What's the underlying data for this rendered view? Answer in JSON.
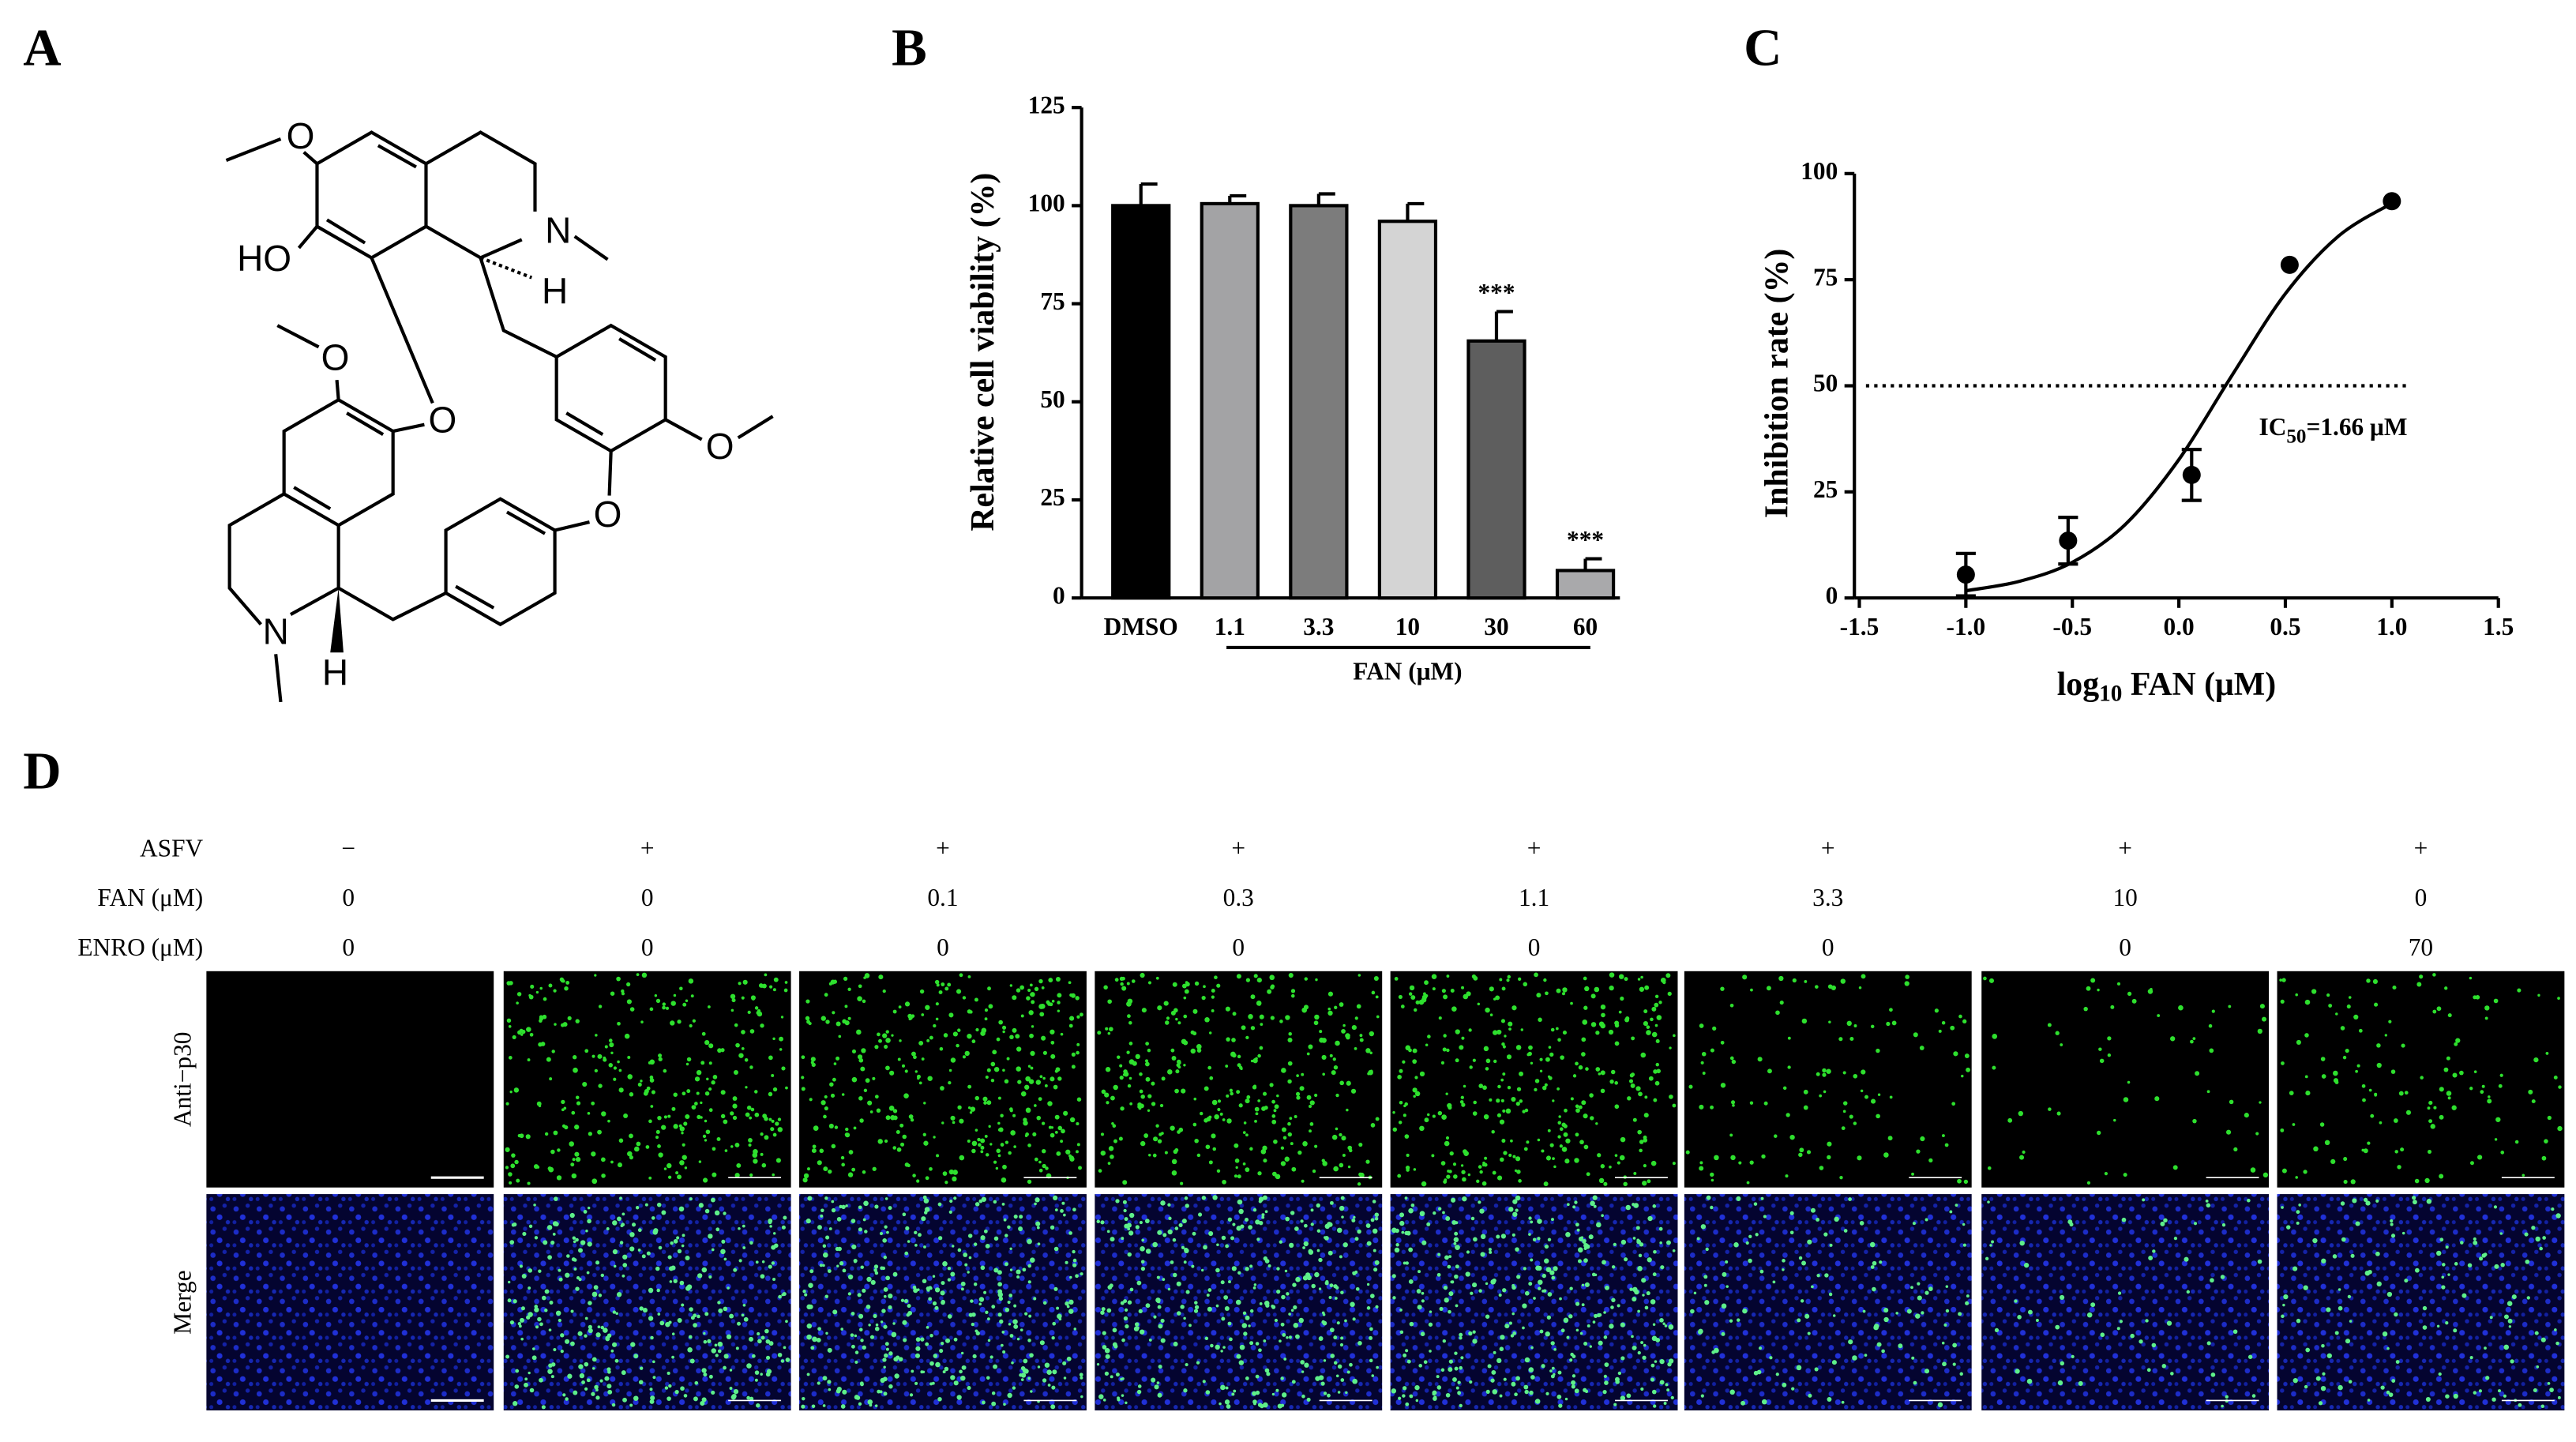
{
  "panel_labels": [
    "A",
    "B",
    "C",
    "D"
  ],
  "structure": {
    "atoms": [
      "O",
      "HO",
      "N",
      "H",
      "O",
      "O",
      "O",
      "O",
      "N",
      "H"
    ]
  },
  "chart_data": [
    {
      "type": "bar",
      "ylabel": "Relative cell viability (%)",
      "xlabel": "FAN (μM)",
      "categories": [
        "DMSO",
        "1.1",
        "3.3",
        "10",
        "30",
        "60"
      ],
      "values": [
        100,
        100.5,
        100,
        96,
        65.5,
        7
      ],
      "errors": [
        5.5,
        2,
        3,
        4.5,
        7.5,
        3
      ],
      "colors": [
        "#000000",
        "#a3a3a5",
        "#7c7c7c",
        "#d4d4d4",
        "#5e5e5e",
        "#a9a9ab"
      ],
      "significance": [
        null,
        null,
        null,
        null,
        "***",
        "***"
      ],
      "ylim": [
        0,
        125
      ],
      "yticks": [
        0,
        25,
        50,
        75,
        100,
        125
      ]
    },
    {
      "type": "scatter",
      "ylabel": "Inhibition rate (%)",
      "xlabel": [
        "log",
        "10",
        " FAN (μM)"
      ],
      "x": [
        -1.0,
        -0.52,
        0.06,
        0.52,
        1.0
      ],
      "values": [
        5.5,
        13.5,
        29,
        78.5,
        93.5
      ],
      "errors": [
        5,
        5.5,
        6,
        null,
        null
      ],
      "fit": {
        "x": [
          -1,
          -0.75,
          -0.5,
          -0.25,
          0,
          0.25,
          0.5,
          0.75,
          1
        ],
        "y": [
          1.7,
          3.9,
          8.4,
          17.4,
          32.6,
          52.5,
          71.7,
          85.3,
          93
        ]
      },
      "reference_line": 50,
      "annotation": [
        "IC",
        "50",
        "=1.66 μM"
      ],
      "color": "#000000",
      "xlim": [
        -1.5,
        1.5
      ],
      "xticks": [
        -1.5,
        {
          "value": -1,
          "label": "-1.0"
        },
        -0.5,
        {
          "value": 0,
          "label": "0.0"
        },
        0.5,
        {
          "value": 1,
          "label": "1.0"
        },
        1.5
      ],
      "ylim": [
        0,
        100
      ],
      "yticks": [
        0,
        25,
        50,
        75,
        100
      ]
    }
  ],
  "microscopy": {
    "conditions": [
      {
        "label": "ASFV",
        "values": [
          "−",
          "+",
          "+",
          "+",
          "+",
          "+",
          "+",
          "+"
        ]
      },
      {
        "label": "FAN (μM)",
        "values": [
          0,
          0,
          0.1,
          0.3,
          1.1,
          3.3,
          10,
          0
        ]
      },
      {
        "label": "ENRO (μM)",
        "values": [
          0,
          0,
          0,
          0,
          0,
          0,
          0,
          70
        ]
      }
    ],
    "rows": [
      "Anti−p30",
      "Merge"
    ]
  }
}
